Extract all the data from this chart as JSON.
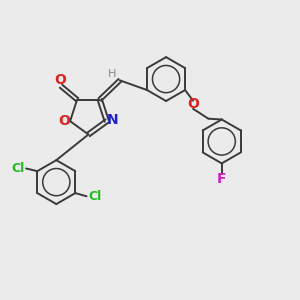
{
  "background_color": "#ebebeb",
  "bond_color": "#3a3a3a",
  "atom_colors": {
    "O": "#dd2020",
    "N": "#2020cc",
    "Cl": "#22bb22",
    "F": "#cc22cc",
    "H": "#888888"
  },
  "figsize": [
    3.0,
    3.0
  ],
  "dpi": 100,
  "lw": 1.4,
  "lw_inner": 1.1
}
